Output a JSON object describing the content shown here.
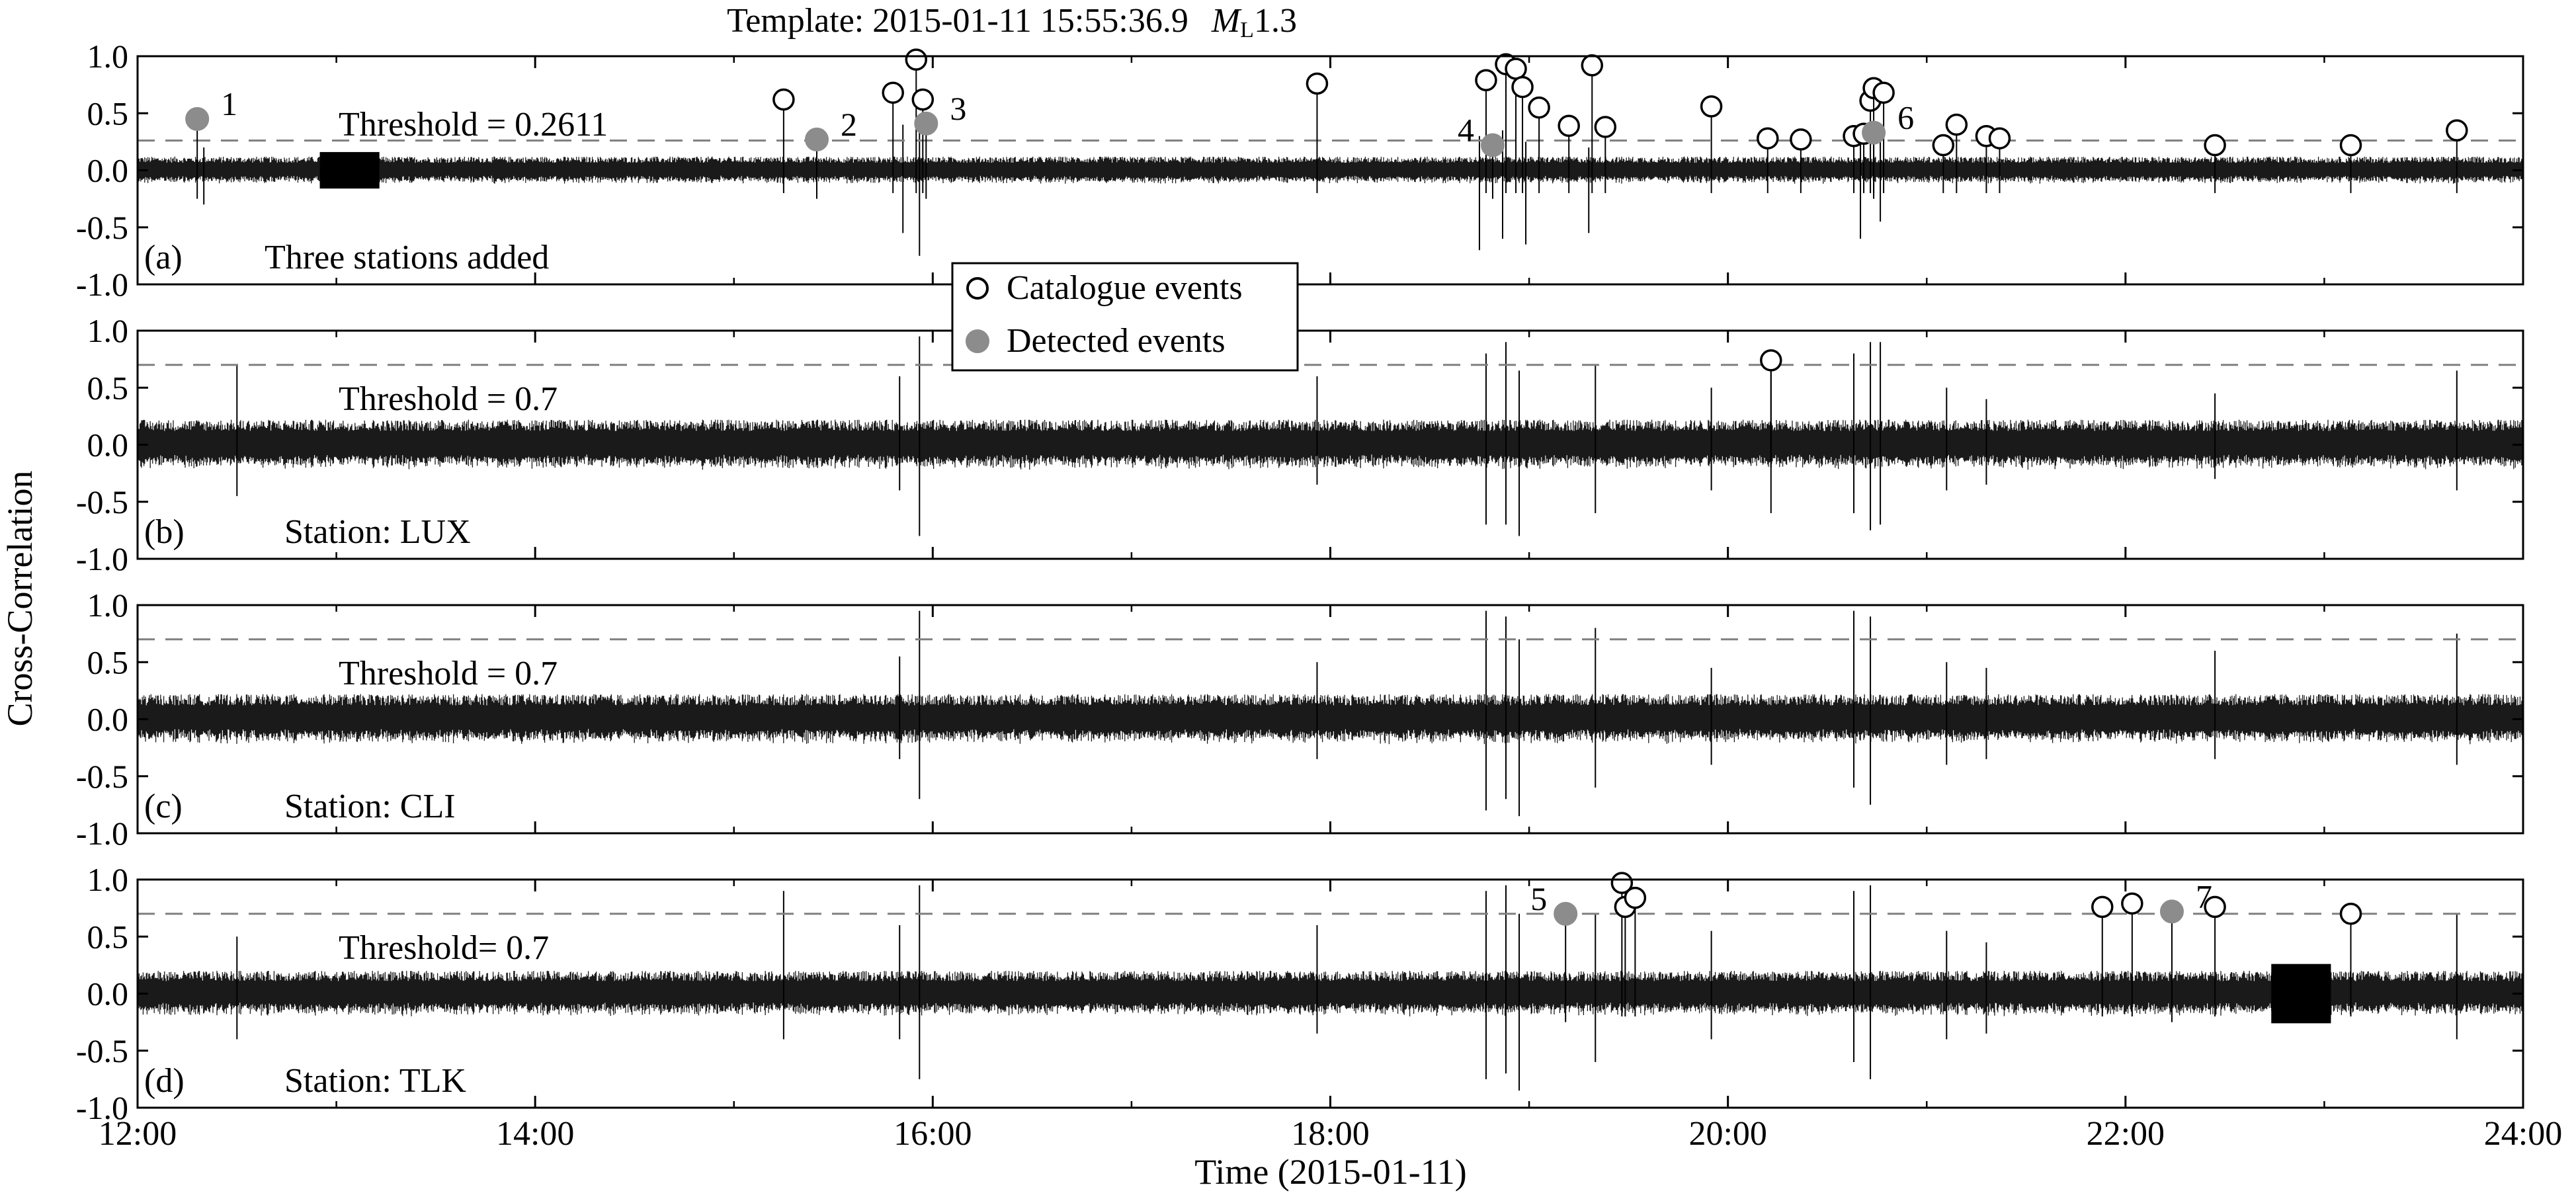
{
  "title": {
    "prefix": "Template: 2015-01-11 15:55:36.9",
    "magnitude_symbol": "M",
    "magnitude_subscript": "L",
    "magnitude_value": "1.3"
  },
  "legend": {
    "placement": "center, between panels (a) and (b)",
    "catalogue_label": "Catalogue events",
    "detected_label": "Detected events"
  },
  "y_axis_label": "Cross-Correlation",
  "x_axis_label": "Time (2015-01-11)",
  "colors": {
    "trace": "#1a1a1a",
    "threshold_line": "#808080",
    "detected_marker": "#8c8c8c",
    "catalogue_marker_edge": "#000000"
  },
  "chart_data": [
    {
      "type": "line",
      "panel_letter": "(a)",
      "panel_label": "Three stations added",
      "threshold_label": "Threshold = 0.2611",
      "threshold": 0.2611,
      "xlim": [
        "12:00",
        "24:00"
      ],
      "ylim": [
        -1.0,
        1.0
      ],
      "noise_amplitude": 0.12,
      "catalogue_events": [
        {
          "t": "15:15",
          "cc": 0.62
        },
        {
          "t": "15:48",
          "cc": 0.68
        },
        {
          "t": "15:55",
          "cc": 0.97
        },
        {
          "t": "15:57",
          "cc": 0.62
        },
        {
          "t": "17:56",
          "cc": 0.76
        },
        {
          "t": "18:47",
          "cc": 0.79
        },
        {
          "t": "18:53",
          "cc": 0.93
        },
        {
          "t": "18:56",
          "cc": 0.89
        },
        {
          "t": "18:58",
          "cc": 0.73
        },
        {
          "t": "19:03",
          "cc": 0.55
        },
        {
          "t": "19:12",
          "cc": 0.39
        },
        {
          "t": "19:19",
          "cc": 0.92
        },
        {
          "t": "19:23",
          "cc": 0.38
        },
        {
          "t": "19:55",
          "cc": 0.56
        },
        {
          "t": "20:12",
          "cc": 0.28
        },
        {
          "t": "20:22",
          "cc": 0.27
        },
        {
          "t": "20:38",
          "cc": 0.3
        },
        {
          "t": "20:41",
          "cc": 0.32
        },
        {
          "t": "20:43",
          "cc": 0.61
        },
        {
          "t": "20:44",
          "cc": 0.72
        },
        {
          "t": "20:47",
          "cc": 0.68
        },
        {
          "t": "21:05",
          "cc": 0.22
        },
        {
          "t": "21:09",
          "cc": 0.4
        },
        {
          "t": "21:18",
          "cc": 0.3
        },
        {
          "t": "21:22",
          "cc": 0.28
        },
        {
          "t": "22:27",
          "cc": 0.22
        },
        {
          "t": "23:08",
          "cc": 0.22
        },
        {
          "t": "23:40",
          "cc": 0.35
        }
      ],
      "detected_events": [
        {
          "id": "1",
          "t": "12:18",
          "cc": 0.45
        },
        {
          "id": "2",
          "t": "15:25",
          "cc": 0.27
        },
        {
          "id": "3",
          "t": "15:58",
          "cc": 0.41
        },
        {
          "id": "4",
          "t": "18:49",
          "cc": 0.22
        },
        {
          "id": "6",
          "t": "20:44",
          "cc": 0.33
        }
      ],
      "other_spikes": [
        {
          "t": "12:20",
          "up": 0.2,
          "down": -0.3
        },
        {
          "t": "15:51",
          "up": 0.4,
          "down": -0.55
        },
        {
          "t": "15:56",
          "up": 0.45,
          "down": -0.75
        },
        {
          "t": "18:45",
          "up": 0.3,
          "down": -0.7
        },
        {
          "t": "18:52",
          "up": 0.35,
          "down": -0.6
        },
        {
          "t": "18:59",
          "up": 0.25,
          "down": -0.65
        },
        {
          "t": "19:18",
          "up": 0.2,
          "down": -0.55
        },
        {
          "t": "20:40",
          "up": 0.25,
          "down": -0.6
        },
        {
          "t": "20:46",
          "up": 0.3,
          "down": -0.45
        }
      ],
      "dense_blocks": [
        {
          "start": "12:55",
          "end": "13:13",
          "amp": 0.16
        }
      ]
    },
    {
      "type": "line",
      "panel_letter": "(b)",
      "panel_label": "Station: LUX",
      "threshold_label": "Threshold = 0.7",
      "threshold": 0.7,
      "xlim": [
        "12:00",
        "24:00"
      ],
      "ylim": [
        -1.0,
        1.0
      ],
      "noise_amplitude": 0.22,
      "catalogue_events": [
        {
          "t": "20:13",
          "cc": 0.74
        }
      ],
      "detected_events": [],
      "other_spikes": [
        {
          "t": "12:30",
          "up": 0.7,
          "down": -0.45
        },
        {
          "t": "15:50",
          "up": 0.6,
          "down": -0.4
        },
        {
          "t": "15:56",
          "up": 0.95,
          "down": -0.8
        },
        {
          "t": "17:56",
          "up": 0.6,
          "down": -0.35
        },
        {
          "t": "18:47",
          "up": 0.8,
          "down": -0.7
        },
        {
          "t": "18:53",
          "up": 0.9,
          "down": -0.7
        },
        {
          "t": "18:57",
          "up": 0.65,
          "down": -0.8
        },
        {
          "t": "19:20",
          "up": 0.7,
          "down": -0.6
        },
        {
          "t": "19:55",
          "up": 0.5,
          "down": -0.4
        },
        {
          "t": "20:13",
          "up": 0.7,
          "down": -0.6
        },
        {
          "t": "20:38",
          "up": 0.8,
          "down": -0.6
        },
        {
          "t": "20:43",
          "up": 0.9,
          "down": -0.75
        },
        {
          "t": "20:46",
          "up": 0.9,
          "down": -0.7
        },
        {
          "t": "21:06",
          "up": 0.5,
          "down": -0.4
        },
        {
          "t": "21:18",
          "up": 0.4,
          "down": -0.35
        },
        {
          "t": "22:27",
          "up": 0.45,
          "down": -0.3
        },
        {
          "t": "23:40",
          "up": 0.65,
          "down": -0.4
        }
      ],
      "dense_blocks": []
    },
    {
      "type": "line",
      "panel_letter": "(c)",
      "panel_label": "Station: CLI",
      "threshold_label": "Threshold = 0.7",
      "threshold": 0.7,
      "xlim": [
        "12:00",
        "24:00"
      ],
      "ylim": [
        -1.0,
        1.0
      ],
      "noise_amplitude": 0.22,
      "catalogue_events": [],
      "detected_events": [],
      "other_spikes": [
        {
          "t": "15:50",
          "up": 0.55,
          "down": -0.35
        },
        {
          "t": "15:56",
          "up": 0.95,
          "down": -0.7
        },
        {
          "t": "17:56",
          "up": 0.5,
          "down": -0.35
        },
        {
          "t": "18:47",
          "up": 0.95,
          "down": -0.8
        },
        {
          "t": "18:53",
          "up": 0.9,
          "down": -0.7
        },
        {
          "t": "18:57",
          "up": 0.7,
          "down": -0.85
        },
        {
          "t": "19:20",
          "up": 0.8,
          "down": -0.6
        },
        {
          "t": "19:55",
          "up": 0.45,
          "down": -0.4
        },
        {
          "t": "20:38",
          "up": 0.95,
          "down": -0.6
        },
        {
          "t": "20:43",
          "up": 0.9,
          "down": -0.75
        },
        {
          "t": "21:06",
          "up": 0.5,
          "down": -0.4
        },
        {
          "t": "21:18",
          "up": 0.45,
          "down": -0.35
        },
        {
          "t": "22:27",
          "up": 0.6,
          "down": -0.35
        },
        {
          "t": "23:40",
          "up": 0.75,
          "down": -0.4
        }
      ],
      "dense_blocks": []
    },
    {
      "type": "line",
      "panel_letter": "(d)",
      "panel_label": "Station: TLK",
      "threshold_label": "Threshold= 0.7",
      "threshold": 0.7,
      "xlim": [
        "12:00",
        "24:00"
      ],
      "ylim": [
        -1.0,
        1.0
      ],
      "noise_amplitude": 0.2,
      "catalogue_events": [
        {
          "t": "19:28",
          "cc": 0.97
        },
        {
          "t": "19:29",
          "cc": 0.76
        },
        {
          "t": "19:32",
          "cc": 0.84
        },
        {
          "t": "21:53",
          "cc": 0.76
        },
        {
          "t": "22:02",
          "cc": 0.79
        },
        {
          "t": "22:27",
          "cc": 0.76
        },
        {
          "t": "23:08",
          "cc": 0.7
        }
      ],
      "detected_events": [
        {
          "id": "5",
          "t": "19:11",
          "cc": 0.7
        },
        {
          "id": "7",
          "t": "22:14",
          "cc": 0.72
        }
      ],
      "other_spikes": [
        {
          "t": "12:30",
          "up": 0.5,
          "down": -0.4
        },
        {
          "t": "15:15",
          "up": 0.9,
          "down": -0.4
        },
        {
          "t": "15:50",
          "up": 0.6,
          "down": -0.4
        },
        {
          "t": "15:56",
          "up": 0.95,
          "down": -0.75
        },
        {
          "t": "17:56",
          "up": 0.6,
          "down": -0.35
        },
        {
          "t": "18:47",
          "up": 0.9,
          "down": -0.75
        },
        {
          "t": "18:53",
          "up": 0.95,
          "down": -0.7
        },
        {
          "t": "18:57",
          "up": 0.7,
          "down": -0.85
        },
        {
          "t": "19:20",
          "up": 0.7,
          "down": -0.6
        },
        {
          "t": "19:55",
          "up": 0.55,
          "down": -0.4
        },
        {
          "t": "20:38",
          "up": 0.9,
          "down": -0.6
        },
        {
          "t": "20:43",
          "up": 0.95,
          "down": -0.75
        },
        {
          "t": "21:06",
          "up": 0.55,
          "down": -0.4
        },
        {
          "t": "21:18",
          "up": 0.45,
          "down": -0.35
        },
        {
          "t": "23:40",
          "up": 0.7,
          "down": -0.4
        }
      ],
      "dense_blocks": [
        {
          "start": "22:44",
          "end": "23:02",
          "amp": 0.26
        }
      ]
    }
  ],
  "y_ticks": [
    "1.0",
    "0.5",
    "0.0",
    "-0.5",
    "-1.0"
  ],
  "x_ticks": [
    "12:00",
    "14:00",
    "16:00",
    "18:00",
    "20:00",
    "22:00",
    "24:00"
  ]
}
